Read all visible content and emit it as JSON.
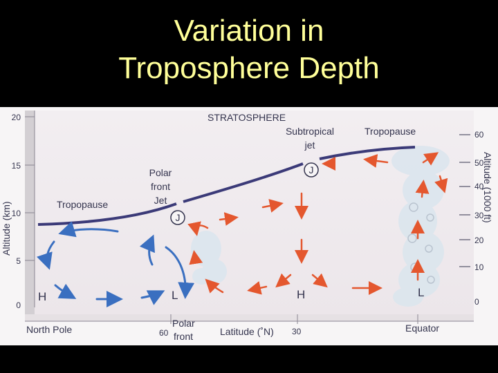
{
  "title": {
    "line1": "Variation in",
    "line2": "Troposphere Depth"
  },
  "figure": {
    "left_axis": {
      "label": "Altitude (km)",
      "ticks": [
        "20",
        "15",
        "10",
        "5",
        "0"
      ]
    },
    "right_axis": {
      "label": "Altitude (1000 ft)",
      "ticks": [
        "60",
        "50",
        "40",
        "30",
        "20",
        "10",
        "0"
      ]
    },
    "bottom_axis": {
      "label": "Latitude (˚N)",
      "tick_60": "60",
      "tick_30": "30"
    },
    "labels": {
      "stratosphere": "STRATOSPHERE",
      "tropopause_left": "Tropopause",
      "tropopause_right": "Tropopause",
      "polar_front_jet_1": "Polar",
      "polar_front_jet_2": "front",
      "polar_front_jet_3": "Jet",
      "subtropical_jet_1": "Subtropical",
      "subtropical_jet_2": "jet",
      "jet_symbol": "J",
      "north_pole": "North Pole",
      "polar_front_1": "Polar",
      "polar_front_2": "front",
      "equator": "Equator"
    },
    "pressure_labels": [
      "H",
      "L",
      "H",
      "L"
    ],
    "colors": {
      "tropopause_line": "#3b3a78",
      "polar_cell_arrows": "#3a6fc0",
      "warm_arrows": "#e4572e",
      "cloud": "#dde6ee",
      "text": "#33334d"
    }
  }
}
